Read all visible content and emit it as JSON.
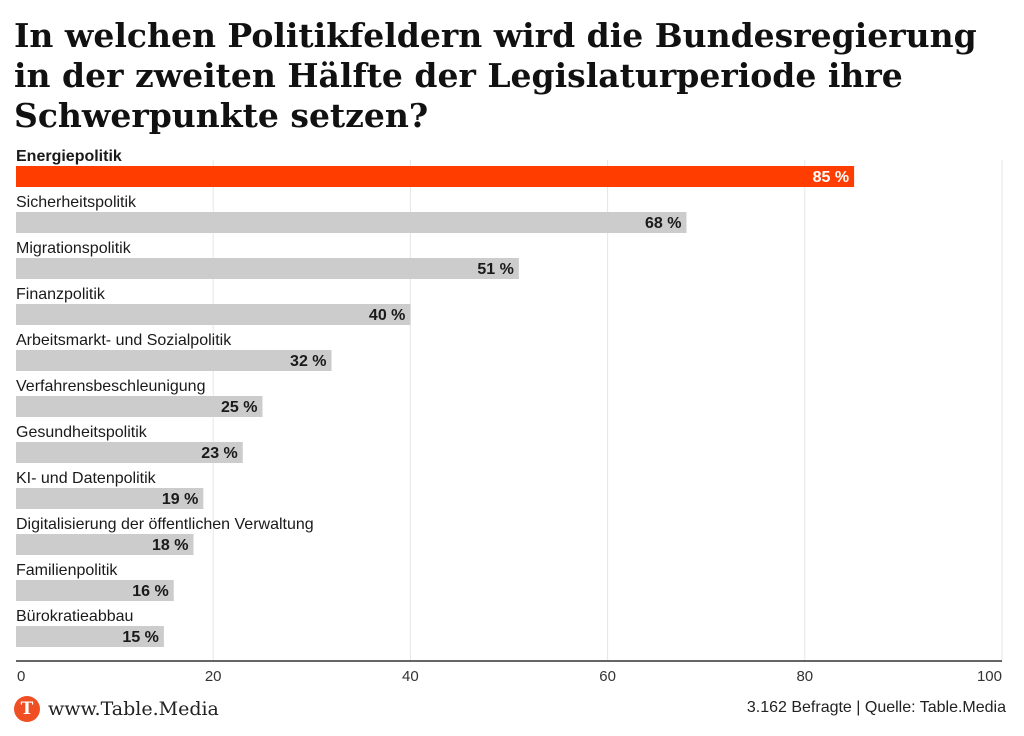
{
  "chart_data": {
    "type": "bar",
    "orientation": "horizontal",
    "title": "In welchen Politikfeldern wird die Bundesregierung in der zweiten Hälfte der Legislaturperiode ihre Schwerpunkte setzen?",
    "categories": [
      "Energiepolitik",
      "Sicherheitspolitik",
      "Migrationspolitik",
      "Finanzpolitik",
      "Arbeitsmarkt- und Sozialpolitik",
      "Verfahrensbeschleunigung",
      "Gesundheitspolitik",
      "KI- und Datenpolitik",
      "Digitalisierung der öffentlichen Verwaltung",
      "Familienpolitik",
      "Bürokratieabbau"
    ],
    "values": [
      85,
      68,
      51,
      40,
      32,
      25,
      23,
      19,
      18,
      16,
      15
    ],
    "value_labels": [
      "85 %",
      "68 %",
      "51 %",
      "40 %",
      "32 %",
      "25 %",
      "23 %",
      "19 %",
      "18 %",
      "16 %",
      "15 %"
    ],
    "highlight_index": 0,
    "xlim": [
      0,
      100
    ],
    "xticks": [
      0,
      20,
      40,
      60,
      80,
      100
    ],
    "grid": true,
    "colors": {
      "highlight": "#ff3d00",
      "bar": "#cccccc",
      "grid": "#e6e6e6",
      "axis": "#333333"
    }
  },
  "footer": {
    "logo_letter": "T",
    "site": "www.Table.Media",
    "source": "3.162 Befragte | Quelle: Table.Media"
  }
}
